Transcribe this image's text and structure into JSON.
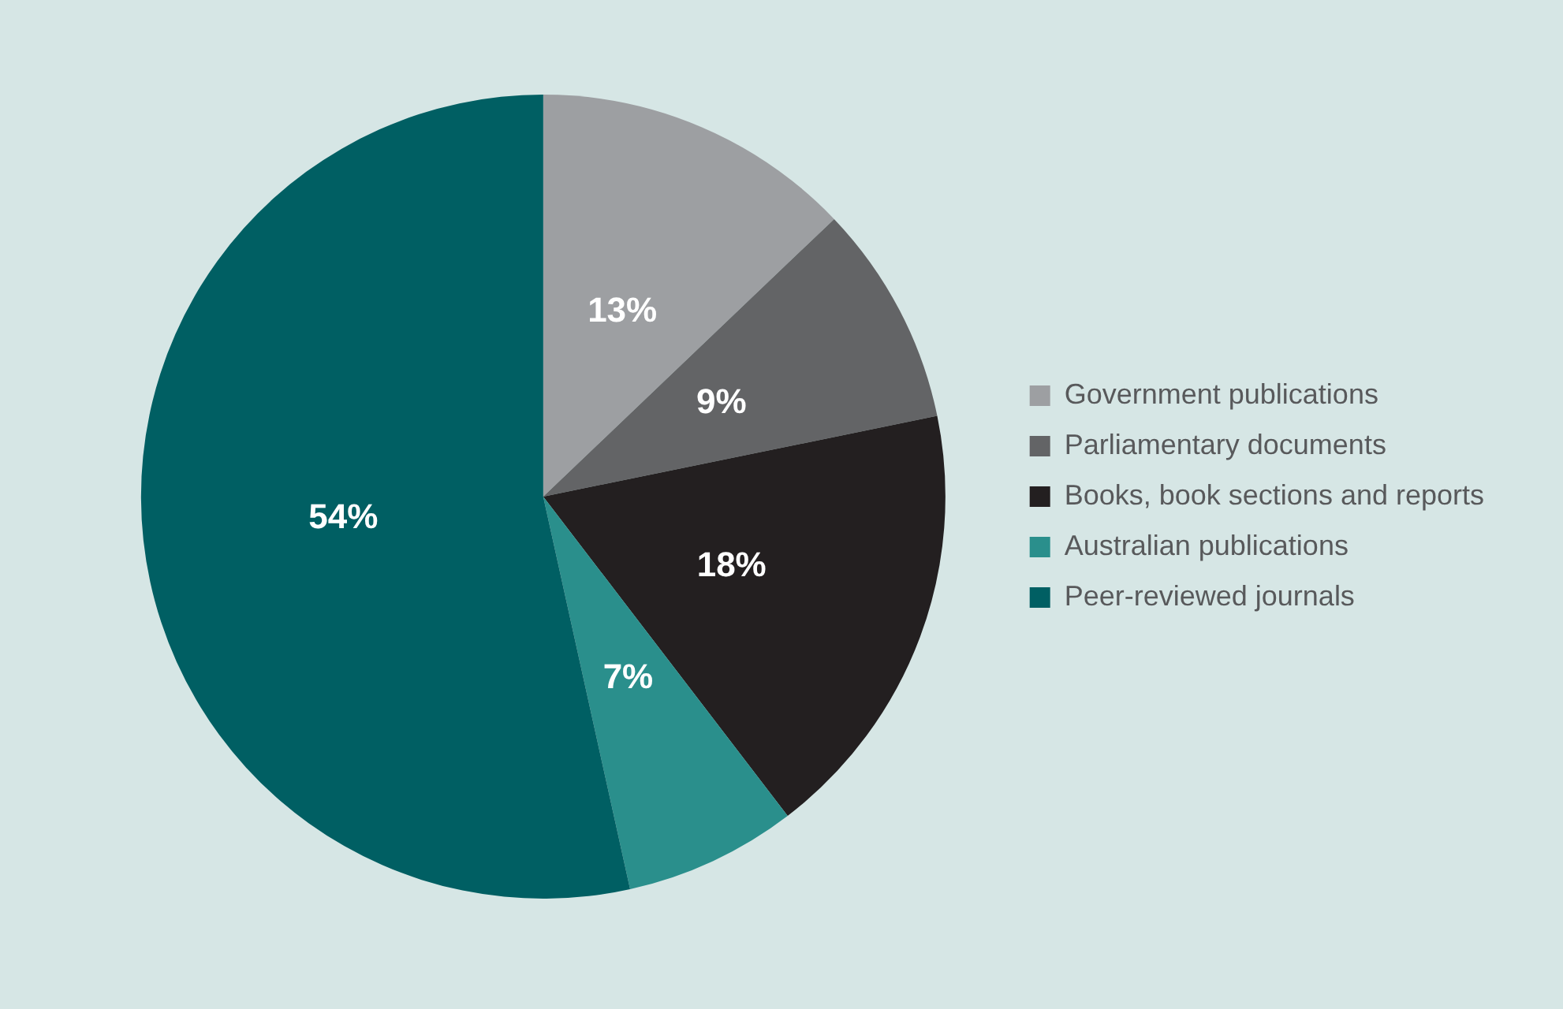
{
  "chart_data": {
    "type": "pie",
    "categories": [
      "Government publications",
      "Parliamentary documents",
      "Books, book sections and reports",
      "Australian publications",
      "Peer-reviewed journals"
    ],
    "values": [
      13,
      9,
      18,
      7,
      54
    ],
    "colors": [
      "#9d9fa2",
      "#636466",
      "#231f20",
      "#2a8f8c",
      "#005f63"
    ],
    "value_labels": [
      "13%",
      "9%",
      "18%",
      "7%",
      "54%"
    ],
    "legend": "right"
  }
}
